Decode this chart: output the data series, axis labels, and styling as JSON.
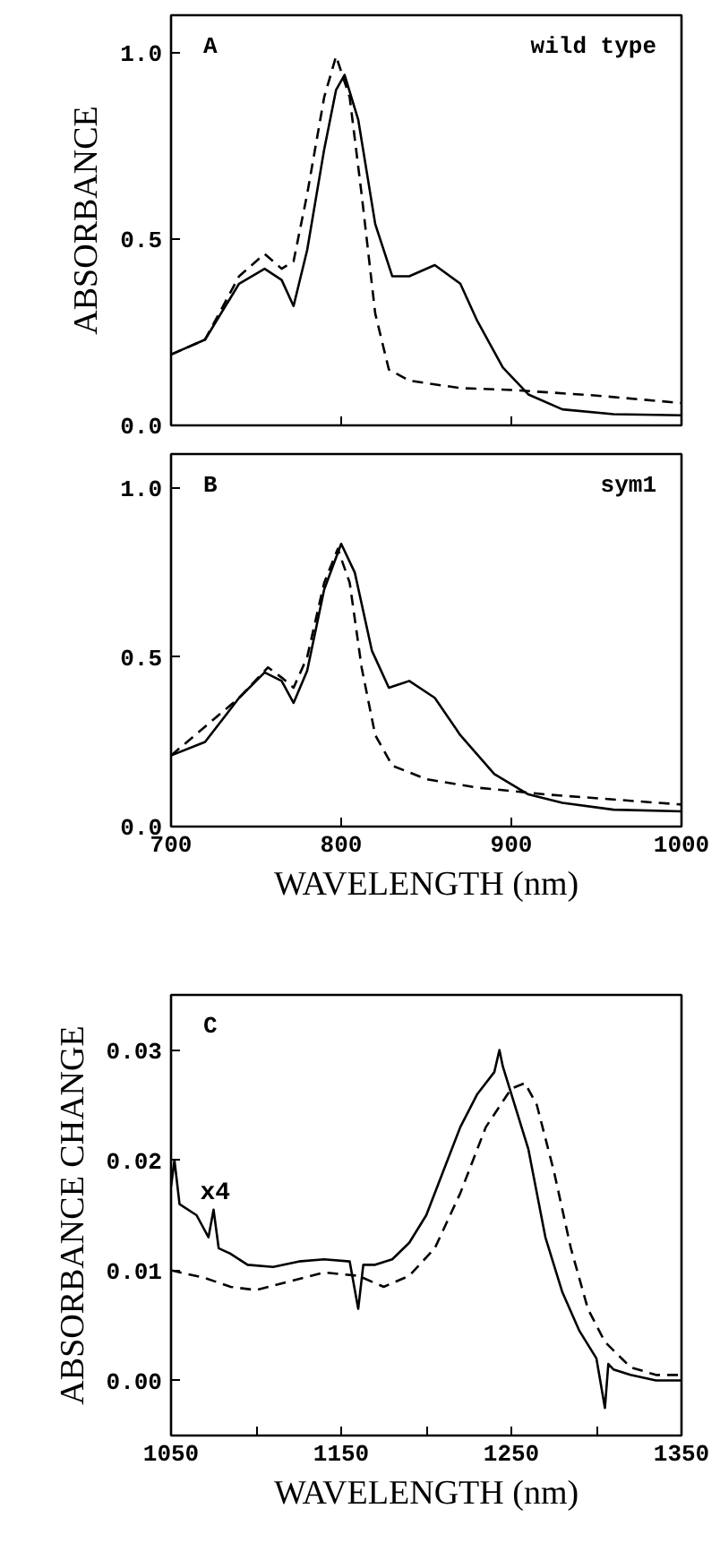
{
  "chart_data": [
    {
      "type": "line",
      "ylabel": "ABSORBANCE",
      "annotations": [
        "A",
        "wild type"
      ],
      "xlim": [
        700,
        1000
      ],
      "ylim": [
        0,
        1.1
      ],
      "xticks": [
        700,
        800,
        900,
        1000
      ],
      "yticks": [
        {
          "value": 0,
          "label": "0.0"
        },
        {
          "value": 0.5,
          "label": "0.5"
        },
        {
          "value": 1,
          "label": "1.0"
        }
      ],
      "tick_labels": "y",
      "grid": false,
      "series": [
        {
          "color": "#000000",
          "line_style": "solid",
          "x": [
            700,
            720,
            740,
            755,
            765,
            772,
            780,
            790,
            797,
            802,
            810,
            820,
            830,
            840,
            855,
            870,
            880,
            895,
            910,
            930,
            960,
            1000
          ],
          "values": [
            0.19,
            0.23,
            0.38,
            0.42,
            0.39,
            0.32,
            0.47,
            0.74,
            0.9,
            0.94,
            0.82,
            0.54,
            0.4,
            0.4,
            0.43,
            0.38,
            0.28,
            0.155,
            0.083,
            0.043,
            0.03,
            0.027
          ]
        },
        {
          "color": "#000000",
          "line_style": "dashed",
          "x": [
            700,
            720,
            740,
            755,
            765,
            772,
            780,
            790,
            797,
            805,
            812,
            820,
            828,
            840,
            870,
            900,
            950,
            1000
          ],
          "values": [
            0.19,
            0.23,
            0.4,
            0.46,
            0.42,
            0.44,
            0.62,
            0.88,
            0.99,
            0.88,
            0.62,
            0.3,
            0.15,
            0.12,
            0.1,
            0.095,
            0.08,
            0.06
          ]
        }
      ]
    },
    {
      "type": "line",
      "xlabel": "WAVELENGTH (nm)",
      "annotations": [
        "B",
        "sym1"
      ],
      "xlim": [
        700,
        1000
      ],
      "ylim": [
        0,
        1.1
      ],
      "xticks": [
        700,
        800,
        900,
        1000
      ],
      "yticks": [
        {
          "value": 0,
          "label": "0.0"
        },
        {
          "value": 0.5,
          "label": "0.5"
        },
        {
          "value": 1,
          "label": "1.0"
        }
      ],
      "grid": false,
      "series": [
        {
          "color": "#000000",
          "line_style": "solid",
          "x": [
            700,
            720,
            740,
            755,
            765,
            772,
            780,
            790,
            800,
            808,
            818,
            828,
            840,
            855,
            870,
            890,
            910,
            930,
            960,
            1000
          ],
          "values": [
            0.21,
            0.25,
            0.38,
            0.455,
            0.43,
            0.365,
            0.46,
            0.7,
            0.835,
            0.75,
            0.52,
            0.41,
            0.43,
            0.38,
            0.27,
            0.155,
            0.095,
            0.07,
            0.05,
            0.045
          ]
        },
        {
          "color": "#000000",
          "line_style": "dashed",
          "x": [
            700,
            740,
            757,
            765,
            772,
            780,
            790,
            798,
            805,
            812,
            820,
            830,
            850,
            880,
            920,
            960,
            1000
          ],
          "values": [
            0.21,
            0.38,
            0.47,
            0.44,
            0.41,
            0.5,
            0.72,
            0.82,
            0.72,
            0.47,
            0.27,
            0.18,
            0.14,
            0.115,
            0.095,
            0.08,
            0.065
          ]
        }
      ]
    },
    {
      "type": "line",
      "xlabel": "WAVELENGTH (nm)",
      "ylabel": "ABSORBANCE CHANGE",
      "annotations": [
        "C",
        {
          "text": "x4",
          "x": 1065,
          "y": 0.015
        }
      ],
      "xlim": [
        1050,
        1350
      ],
      "ylim": [
        -0.005,
        0.035
      ],
      "xticks": [
        1050,
        {
          "value": 1100,
          "label": null
        },
        1150,
        {
          "value": 1200,
          "label": null
        },
        1250,
        {
          "value": 1300,
          "label": null
        },
        1350
      ],
      "yticks": [
        {
          "value": 0,
          "label": "0.00"
        },
        {
          "value": 0.01,
          "label": "0.01"
        },
        {
          "value": 0.02,
          "label": "0.02"
        },
        {
          "value": 0.03,
          "label": "0.03"
        }
      ],
      "grid": false,
      "series": [
        {
          "color": "#000000",
          "line_style": "solid",
          "x": [
            1050,
            1052,
            1055,
            1065,
            1072,
            1075,
            1078,
            1085,
            1095,
            1110,
            1125,
            1140,
            1155,
            1160,
            1163,
            1170,
            1180,
            1190,
            1200,
            1210,
            1220,
            1230,
            1240,
            1243,
            1245,
            1250,
            1260,
            1270,
            1280,
            1290,
            1300,
            1305,
            1307,
            1310,
            1320,
            1335,
            1350
          ],
          "values": [
            0.0176,
            0.02,
            0.016,
            0.015,
            0.013,
            0.0155,
            0.012,
            0.0115,
            0.0105,
            0.0103,
            0.0108,
            0.011,
            0.0108,
            0.0065,
            0.0105,
            0.0105,
            0.011,
            0.0125,
            0.015,
            0.019,
            0.023,
            0.026,
            0.028,
            0.03,
            0.0285,
            0.026,
            0.021,
            0.013,
            0.008,
            0.0045,
            0.002,
            -0.0025,
            0.0015,
            0.001,
            0.0005,
            0.0,
            0.0
          ]
        },
        {
          "color": "#000000",
          "line_style": "dashed",
          "x": [
            1050,
            1070,
            1085,
            1100,
            1120,
            1140,
            1160,
            1175,
            1190,
            1205,
            1220,
            1235,
            1250,
            1258,
            1265,
            1275,
            1285,
            1295,
            1305,
            1320,
            1335,
            1350
          ],
          "values": [
            0.01,
            0.0093,
            0.0085,
            0.0082,
            0.009,
            0.0098,
            0.0095,
            0.0085,
            0.0095,
            0.012,
            0.017,
            0.023,
            0.0265,
            0.027,
            0.025,
            0.019,
            0.012,
            0.0065,
            0.0035,
            0.0012,
            0.0005,
            0.0005
          ]
        }
      ]
    }
  ]
}
